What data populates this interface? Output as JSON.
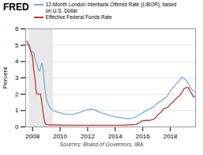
{
  "chart_data": {
    "type": "line",
    "title": "FRED",
    "caption": "Sources: Board of Governors, IBA",
    "y_label": "Percent",
    "xlim": [
      2007.5,
      2019.83
    ],
    "xticks": [
      2008,
      2010,
      2012,
      2014,
      2016,
      2018
    ],
    "ylim": [
      0,
      6
    ],
    "yticks": [
      0,
      1,
      2,
      3,
      4,
      5,
      6
    ],
    "grid": true,
    "legend": "top left",
    "shaded_regions": [
      {
        "start": 2007.75,
        "end": 2009.5,
        "color": "#e8e8e8"
      }
    ],
    "series": [
      {
        "name": "12-Month London Interbank Offered Rate (LIBOR), based\non U.S. Dollar",
        "color": "#7bafd4",
        "x": [
          2007.58,
          2007.67,
          2007.75,
          2007.83,
          2007.92,
          2008.0,
          2008.08,
          2008.17,
          2008.25,
          2008.33,
          2008.42,
          2008.5,
          2008.58,
          2008.67,
          2008.75,
          2008.83,
          2008.92,
          2009.0,
          2009.08,
          2009.17,
          2009.25,
          2009.33,
          2009.5,
          2009.67,
          2009.83,
          2010.0,
          2010.25,
          2010.5,
          2010.75,
          2011.0,
          2011.25,
          2011.5,
          2011.75,
          2012.0,
          2012.25,
          2012.5,
          2012.75,
          2013.0,
          2013.25,
          2013.5,
          2013.75,
          2014.0,
          2014.25,
          2014.5,
          2014.75,
          2015.0,
          2015.25,
          2015.5,
          2015.75,
          2016.0,
          2016.25,
          2016.5,
          2016.75,
          2017.0,
          2017.25,
          2017.5,
          2017.75,
          2018.0,
          2018.25,
          2018.5,
          2018.67,
          2018.83,
          2019.0,
          2019.17,
          2019.33,
          2019.5,
          2019.67,
          2019.75
        ],
        "values": [
          5.05,
          5.0,
          4.95,
          4.7,
          4.6,
          4.6,
          4.55,
          4.2,
          4.0,
          3.8,
          3.5,
          3.4,
          3.6,
          3.9,
          3.7,
          2.9,
          2.2,
          1.75,
          1.5,
          1.35,
          1.2,
          1.1,
          1.0,
          0.95,
          0.9,
          0.87,
          0.8,
          0.78,
          0.77,
          0.78,
          0.85,
          0.9,
          1.0,
          1.05,
          1.1,
          1.05,
          0.95,
          0.85,
          0.8,
          0.73,
          0.67,
          0.62,
          0.58,
          0.55,
          0.52,
          0.5,
          0.53,
          0.62,
          0.75,
          0.87,
          1.0,
          1.1,
          1.2,
          1.4,
          1.55,
          1.7,
          1.85,
          2.2,
          2.45,
          2.7,
          2.85,
          3.05,
          2.95,
          2.85,
          2.6,
          2.35,
          2.2,
          2.15
        ]
      },
      {
        "name": "Effective Federal Funds Rate",
        "color": "#c0392b",
        "x": [
          2007.58,
          2007.75,
          2007.83,
          2007.92,
          2008.0,
          2008.08,
          2008.17,
          2008.25,
          2008.33,
          2008.42,
          2008.5,
          2008.58,
          2008.67,
          2008.75,
          2008.83,
          2008.92,
          2009.0,
          2009.17,
          2009.5,
          2010.0,
          2010.5,
          2011.0,
          2011.5,
          2012.0,
          2012.5,
          2013.0,
          2013.5,
          2014.0,
          2014.5,
          2015.0,
          2015.5,
          2015.75,
          2015.92,
          2016.0,
          2016.25,
          2016.5,
          2016.75,
          2016.92,
          2017.0,
          2017.17,
          2017.33,
          2017.5,
          2017.67,
          2017.83,
          2017.92,
          2018.0,
          2018.17,
          2018.33,
          2018.5,
          2018.67,
          2018.75,
          2018.83,
          2018.92,
          2019.0,
          2019.17,
          2019.25,
          2019.33,
          2019.42,
          2019.5,
          2019.58,
          2019.67,
          2019.75
        ],
        "values": [
          5.25,
          5.0,
          4.75,
          4.5,
          4.25,
          3.5,
          3.0,
          2.25,
          2.0,
          2.0,
          2.0,
          2.0,
          1.5,
          1.0,
          0.5,
          0.2,
          0.15,
          0.13,
          0.12,
          0.11,
          0.1,
          0.1,
          0.1,
          0.1,
          0.1,
          0.1,
          0.1,
          0.1,
          0.1,
          0.12,
          0.15,
          0.25,
          0.35,
          0.38,
          0.4,
          0.4,
          0.45,
          0.55,
          0.65,
          0.8,
          0.9,
          1.1,
          1.15,
          1.2,
          1.3,
          1.4,
          1.5,
          1.65,
          1.8,
          1.9,
          2.0,
          2.1,
          2.2,
          2.35,
          2.4,
          2.42,
          2.38,
          2.2,
          2.1,
          2.0,
          1.85,
          1.85
        ]
      }
    ]
  }
}
